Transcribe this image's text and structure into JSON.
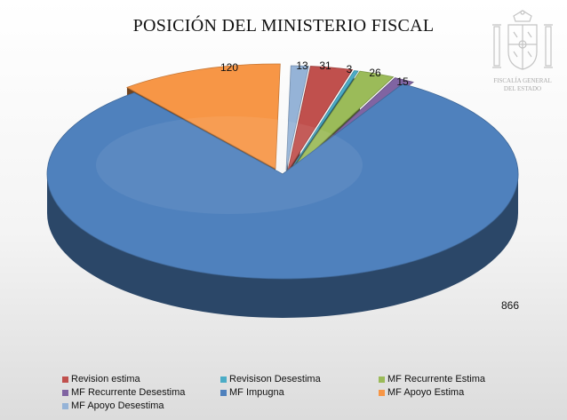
{
  "emblem": {
    "line1": "FISCALÍA GENERAL",
    "line2": "DEL ESTADO"
  },
  "colors": {
    "revision_estima": "#C0504D",
    "revisison_desestima": "#4BACC6",
    "mf_recurrente_estima": "#9BBB59",
    "mf_recurrente_desestima": "#8064A2",
    "mf_impugna": "#4F81BD",
    "mf_apoyo_estima": "#F79646",
    "mf_apoyo_desestima": "#95B3D7"
  },
  "chart_data": {
    "type": "pie",
    "title": "POSICIÓN DEL MINISTERIO FISCAL",
    "style": "3d-exploded",
    "legend_position": "bottom",
    "slices": [
      {
        "label": "MF Apoyo Desestima",
        "value": 13,
        "color": "#95B3D7"
      },
      {
        "label": "Revision estima",
        "value": 31,
        "color": "#C0504D"
      },
      {
        "label": "Revisison Desestima",
        "value": 3,
        "color": "#4BACC6"
      },
      {
        "label": "MF Recurrente Estima",
        "value": 26,
        "color": "#9BBB59"
      },
      {
        "label": "MF Recurrente Desestima",
        "value": 15,
        "color": "#8064A2"
      },
      {
        "label": "MF Impugna",
        "value": 866,
        "color": "#4F81BD"
      },
      {
        "label": "MF Apoyo Estima",
        "value": 120,
        "color": "#F79646"
      }
    ],
    "legend": [
      {
        "label": "Revision estima",
        "color": "#C0504D"
      },
      {
        "label": "Revisison Desestima",
        "color": "#4BACC6"
      },
      {
        "label": "MF Recurrente Estima",
        "color": "#9BBB59"
      },
      {
        "label": "MF Recurrente Desestima",
        "color": "#8064A2"
      },
      {
        "label": "MF Impugna",
        "color": "#4F81BD"
      },
      {
        "label": "MF Apoyo Estima",
        "color": "#F79646"
      },
      {
        "label": "MF Apoyo Desestima",
        "color": "#95B3D7"
      }
    ]
  }
}
